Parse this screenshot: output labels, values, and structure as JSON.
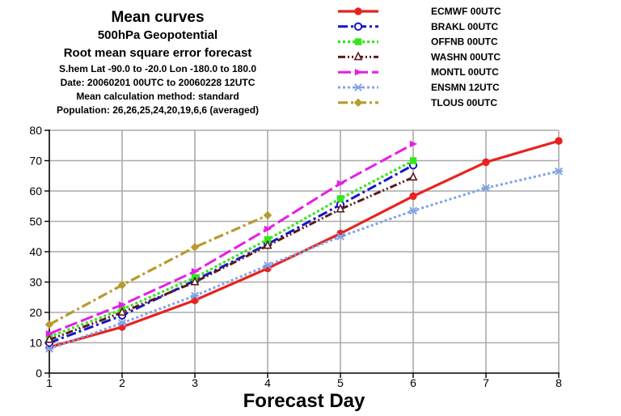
{
  "header": {
    "title": "Mean curves",
    "subtitle1": "500hPa Geopotential",
    "subtitle2": "Root mean square error forecast",
    "info": [
      "S.hem  Lat  -90.0 to -20.0 Lon  -180.0 to  180.0",
      "Date: 20060201 00UTC to 20060228 12UTC",
      "Mean calculation method: standard",
      "Population: 26,26,25,24,20,19,6,6 (averaged)"
    ]
  },
  "chart_data": {
    "type": "line",
    "title": "",
    "xlabel": "Forecast Day",
    "ylabel": "",
    "xlim": [
      1,
      8
    ],
    "ylim": [
      0,
      80
    ],
    "x_ticks": [
      1,
      2,
      3,
      4,
      5,
      6,
      7,
      8
    ],
    "y_ticks": [
      0,
      10,
      20,
      30,
      40,
      50,
      60,
      70,
      80
    ],
    "grid": true,
    "legend_position": "top-right",
    "series": [
      {
        "name": "ECMWF 00UTC",
        "color": "#e8231f",
        "dash": "",
        "width": 3.2,
        "marker": "circle",
        "x": [
          1,
          2,
          3,
          4,
          5,
          6,
          7,
          8
        ],
        "y": [
          8.5,
          15.2,
          24,
          34.5,
          46,
          58.3,
          69.5,
          76.5
        ]
      },
      {
        "name": "BRAKL 00UTC",
        "color": "#1414cc",
        "dash": "12 4 3 4",
        "width": 3,
        "marker": "circle-open",
        "x": [
          1,
          2,
          3,
          4,
          5,
          6
        ],
        "y": [
          10,
          19,
          30.5,
          42.5,
          55.5,
          68.5
        ]
      },
      {
        "name": "OFFNB 00UTC",
        "color": "#33e61a",
        "dash": "3 3",
        "width": 3.2,
        "marker": "square",
        "x": [
          1,
          2,
          3,
          4,
          5,
          6
        ],
        "y": [
          12,
          21,
          31.5,
          44,
          57.5,
          70
        ]
      },
      {
        "name": "WASHN 00UTC",
        "color": "#5a1a1a",
        "dash": "9 3 2 3 2 3",
        "width": 3,
        "marker": "triangle-open",
        "x": [
          1,
          2,
          3,
          4,
          5,
          6
        ],
        "y": [
          11,
          20,
          30,
          42,
          54,
          64.5
        ]
      },
      {
        "name": "MONTL 00UTC",
        "color": "#e61ee6",
        "dash": "16 5",
        "width": 3,
        "marker": "arrow",
        "x": [
          1,
          2,
          3,
          4,
          5,
          6
        ],
        "y": [
          13,
          22.5,
          33.5,
          47.5,
          62.5,
          75.5
        ]
      },
      {
        "name": "ENSMN 12UTC",
        "color": "#7fa3e8",
        "dash": "3 3",
        "width": 3,
        "marker": "star",
        "x": [
          1,
          2,
          3,
          4,
          5,
          6,
          7,
          8
        ],
        "y": [
          8,
          16.5,
          25.5,
          35.5,
          45,
          53.5,
          61,
          66.5
        ]
      },
      {
        "name": "TLOUS 00UTC",
        "color": "#b89a2e",
        "dash": "12 4 3 4",
        "width": 3.2,
        "marker": "diamond",
        "x": [
          1,
          2,
          3,
          4
        ],
        "y": [
          16,
          29,
          41.5,
          52
        ]
      }
    ]
  }
}
